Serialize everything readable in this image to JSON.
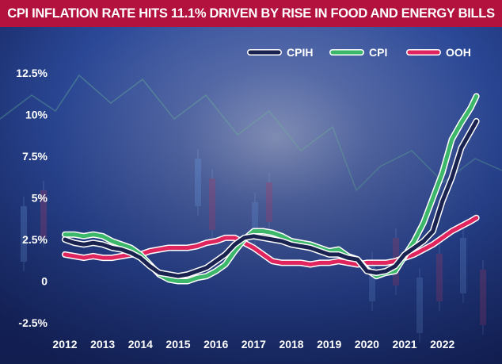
{
  "chart_data": {
    "type": "line",
    "title": "CPI INFLATION RATE HITS 11.1% DRIVEN BY RISE IN FOOD AND ENERGY BILLS",
    "xlabel": "",
    "ylabel": "",
    "x_ticks": [
      "2012",
      "2013",
      "2014",
      "2015",
      "2016",
      "2017",
      "2018",
      "2019",
      "2020",
      "2021",
      "2022"
    ],
    "y_ticks": [
      "-2.5%",
      "0",
      "2.5%",
      "5%",
      "7.5%",
      "10%",
      "12.5%"
    ],
    "y_tick_values": [
      -2.5,
      0,
      2.5,
      5,
      7.5,
      10,
      12.5
    ],
    "xlim": [
      2012,
      2022.95
    ],
    "ylim": [
      -2.5,
      12.5
    ],
    "grid": false,
    "legend_position": "top-right",
    "series": [
      {
        "name": "CPIH",
        "color": "#1a2350",
        "x": [
          2012.0,
          2012.25,
          2012.5,
          2012.75,
          2013.0,
          2013.25,
          2013.5,
          2013.75,
          2014.0,
          2014.25,
          2014.5,
          2014.75,
          2015.0,
          2015.25,
          2015.5,
          2015.75,
          2016.0,
          2016.25,
          2016.5,
          2016.75,
          2017.0,
          2017.25,
          2017.5,
          2017.75,
          2018.0,
          2018.25,
          2018.5,
          2018.75,
          2019.0,
          2019.25,
          2019.5,
          2019.75,
          2020.0,
          2020.25,
          2020.5,
          2020.75,
          2021.0,
          2021.25,
          2021.5,
          2021.75,
          2022.0,
          2022.25,
          2022.5,
          2022.75,
          2022.9
        ],
        "values": [
          2.5,
          2.3,
          2.2,
          2.3,
          2.2,
          2.0,
          1.9,
          1.7,
          1.4,
          0.9,
          0.5,
          0.4,
          0.3,
          0.4,
          0.6,
          0.8,
          1.2,
          1.6,
          2.2,
          2.6,
          2.7,
          2.6,
          2.5,
          2.4,
          2.2,
          2.1,
          2.0,
          1.8,
          1.6,
          1.6,
          1.4,
          1.3,
          0.6,
          0.5,
          0.6,
          0.9,
          1.6,
          2.0,
          2.4,
          3.0,
          4.8,
          6.2,
          8.0,
          9.0,
          9.6
        ]
      },
      {
        "name": "CPI",
        "color": "#3db86a",
        "x": [
          2012.0,
          2012.25,
          2012.5,
          2012.75,
          2013.0,
          2013.25,
          2013.5,
          2013.75,
          2014.0,
          2014.25,
          2014.5,
          2014.75,
          2015.0,
          2015.25,
          2015.5,
          2015.75,
          2016.0,
          2016.25,
          2016.5,
          2016.75,
          2017.0,
          2017.25,
          2017.5,
          2017.75,
          2018.0,
          2018.25,
          2018.5,
          2018.75,
          2019.0,
          2019.25,
          2019.5,
          2019.75,
          2020.0,
          2020.25,
          2020.5,
          2020.75,
          2021.0,
          2021.25,
          2021.5,
          2021.75,
          2022.0,
          2022.25,
          2022.5,
          2022.75,
          2022.9
        ],
        "values": [
          2.8,
          2.8,
          2.7,
          2.8,
          2.7,
          2.4,
          2.2,
          2.0,
          1.6,
          1.0,
          0.4,
          0.1,
          0.0,
          0.0,
          0.2,
          0.3,
          0.6,
          1.0,
          1.8,
          2.5,
          3.0,
          3.0,
          2.9,
          2.7,
          2.4,
          2.3,
          2.2,
          2.0,
          1.8,
          1.9,
          1.5,
          1.3,
          0.7,
          0.3,
          0.5,
          0.6,
          1.5,
          2.4,
          3.5,
          5.0,
          6.5,
          8.5,
          9.5,
          10.4,
          11.1
        ]
      },
      {
        "name": "OOH",
        "color": "#e0245e",
        "x": [
          2012.0,
          2012.25,
          2012.5,
          2012.75,
          2013.0,
          2013.25,
          2013.5,
          2013.75,
          2014.0,
          2014.25,
          2014.5,
          2014.75,
          2015.0,
          2015.25,
          2015.5,
          2015.75,
          2016.0,
          2016.25,
          2016.5,
          2016.75,
          2017.0,
          2017.25,
          2017.5,
          2017.75,
          2018.0,
          2018.25,
          2018.5,
          2018.75,
          2019.0,
          2019.25,
          2019.5,
          2019.75,
          2020.0,
          2020.25,
          2020.5,
          2020.75,
          2021.0,
          2021.25,
          2021.5,
          2021.75,
          2022.0,
          2022.25,
          2022.5,
          2022.75,
          2022.9
        ],
        "values": [
          1.6,
          1.5,
          1.4,
          1.5,
          1.4,
          1.4,
          1.5,
          1.6,
          1.6,
          1.8,
          1.9,
          2.0,
          2.0,
          2.0,
          2.1,
          2.3,
          2.4,
          2.6,
          2.6,
          2.3,
          2.0,
          1.6,
          1.2,
          1.1,
          1.1,
          1.1,
          1.0,
          1.1,
          1.1,
          1.2,
          1.1,
          1.0,
          1.1,
          1.1,
          1.1,
          1.2,
          1.4,
          1.6,
          1.9,
          2.2,
          2.6,
          3.0,
          3.3,
          3.6,
          3.8
        ]
      }
    ]
  },
  "style": {
    "background_top": "#2a4a9a",
    "background_bottom": "#16245e",
    "title_bar": "#b3123e",
    "text_color": "#ffffff"
  }
}
